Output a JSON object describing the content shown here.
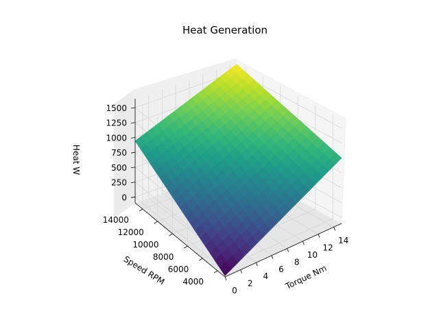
{
  "chart_data": {
    "type": "surface",
    "title": "Heat Generation",
    "xlabel": "Torque Nm",
    "ylabel": "Speed RPM",
    "zlabel": "Heat W",
    "x_ticks": [
      0,
      2,
      4,
      6,
      8,
      10,
      12,
      14
    ],
    "y_ticks": [
      4000,
      6000,
      8000,
      10000,
      12000,
      14000
    ],
    "z_ticks": [
      0,
      250,
      500,
      750,
      1000,
      1250,
      1500
    ],
    "xlim": [
      0,
      15
    ],
    "ylim": [
      3000,
      15000
    ],
    "zlim": [
      -100,
      1650
    ],
    "colormap": "viridis",
    "surface_points": [
      {
        "torque": 0,
        "speed": 3000,
        "heat": -80
      },
      {
        "torque": 0,
        "speed": 15000,
        "heat": 940
      },
      {
        "torque": 15,
        "speed": 3000,
        "heat": 1000
      },
      {
        "torque": 15,
        "speed": 15000,
        "heat": 1620
      }
    ],
    "grid": true
  }
}
